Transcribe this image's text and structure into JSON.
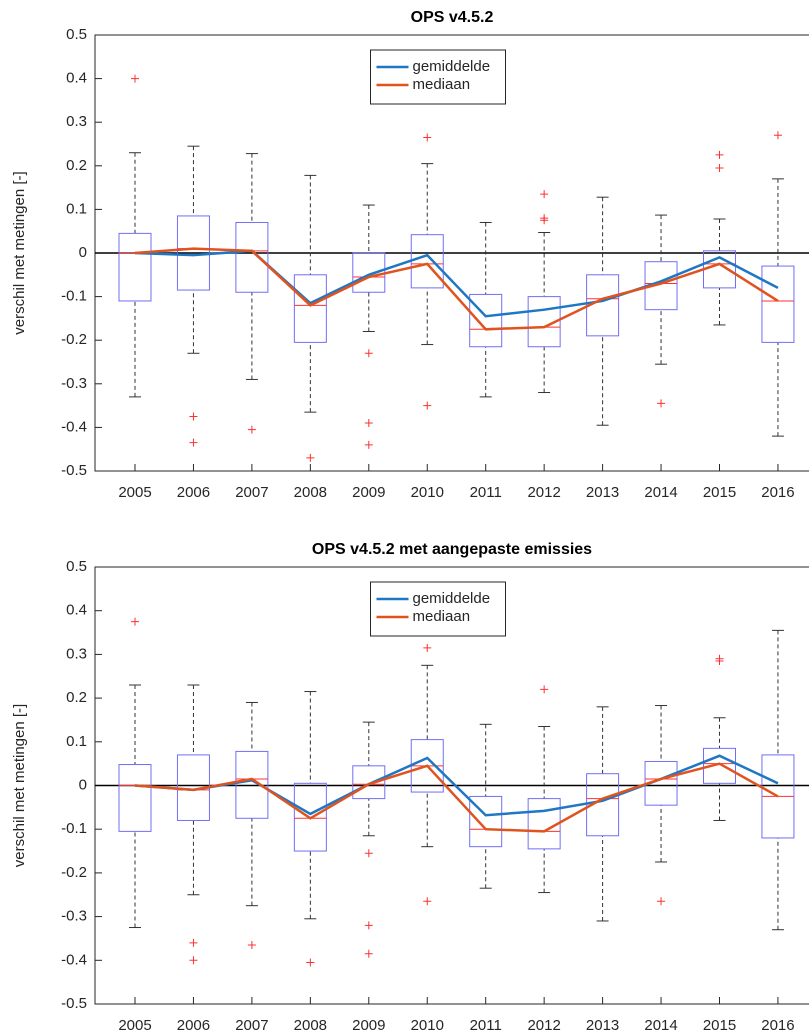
{
  "chart_data": [
    {
      "type": "box",
      "title": "OPS v4.5.2",
      "ylabel": "verschil met metingen [-]",
      "categories": [
        "2005",
        "2006",
        "2007",
        "2008",
        "2009",
        "2010",
        "2011",
        "2012",
        "2013",
        "2014",
        "2015",
        "2016"
      ],
      "ylim": [
        -0.5,
        0.5
      ],
      "yticks": [
        -0.5,
        -0.4,
        -0.3,
        -0.2,
        -0.1,
        0,
        0.1,
        0.2,
        0.3,
        0.4,
        0.5
      ],
      "hline": 0,
      "box_color": "#6f6ff5",
      "outlier_color": "#ff3030",
      "legend": "north",
      "boxes": [
        {
          "low": -0.33,
          "q1": -0.11,
          "median": 0,
          "q3": 0.045,
          "high": 0.23,
          "outliers": [
            0.4
          ]
        },
        {
          "low": -0.23,
          "q1": -0.085,
          "median": 0.01,
          "q3": 0.085,
          "high": 0.245,
          "outliers": [
            -0.375,
            -0.435
          ]
        },
        {
          "low": -0.29,
          "q1": -0.09,
          "median": 0.005,
          "q3": 0.07,
          "high": 0.228,
          "outliers": [
            -0.405
          ]
        },
        {
          "low": -0.365,
          "q1": -0.205,
          "median": -0.12,
          "q3": -0.05,
          "high": 0.178,
          "outliers": [
            -0.47
          ]
        },
        {
          "low": -0.18,
          "q1": -0.09,
          "median": -0.055,
          "q3": 0,
          "high": 0.11,
          "outliers": [
            -0.23,
            -0.39,
            -0.44
          ]
        },
        {
          "low": -0.21,
          "q1": -0.08,
          "median": -0.025,
          "q3": 0.042,
          "high": 0.205,
          "outliers": [
            0.265,
            -0.35
          ]
        },
        {
          "low": -0.33,
          "q1": -0.215,
          "median": -0.175,
          "q3": -0.095,
          "high": 0.07,
          "outliers": []
        },
        {
          "low": -0.32,
          "q1": -0.215,
          "median": -0.17,
          "q3": -0.1,
          "high": 0.047,
          "outliers": [
            0.135,
            0.075,
            0.08
          ]
        },
        {
          "low": -0.395,
          "q1": -0.19,
          "median": -0.105,
          "q3": -0.05,
          "high": 0.128,
          "outliers": []
        },
        {
          "low": -0.255,
          "q1": -0.13,
          "median": -0.07,
          "q3": -0.02,
          "high": 0.087,
          "outliers": [
            -0.345
          ]
        },
        {
          "low": -0.165,
          "q1": -0.08,
          "median": -0.025,
          "q3": 0.005,
          "high": 0.078,
          "outliers": [
            0.225,
            0.195
          ]
        },
        {
          "low": -0.42,
          "q1": -0.205,
          "median": -0.11,
          "q3": -0.03,
          "high": 0.17,
          "outliers": [
            0.27
          ]
        }
      ],
      "series": [
        {
          "name": "gemiddelde",
          "color": "#1f77c4",
          "values": [
            0,
            -0.005,
            0.005,
            -0.115,
            -0.05,
            -0.005,
            -0.145,
            -0.13,
            -0.11,
            -0.065,
            -0.01,
            -0.08
          ]
        },
        {
          "name": "mediaan",
          "color": "#e0531f",
          "values": [
            0,
            0.01,
            0.005,
            -0.12,
            -0.055,
            -0.025,
            -0.175,
            -0.17,
            -0.105,
            -0.07,
            -0.025,
            -0.11
          ]
        }
      ]
    },
    {
      "type": "box",
      "title": "OPS v4.5.2 met aangepaste emissies",
      "ylabel": "verschil met metingen [-]",
      "categories": [
        "2005",
        "2006",
        "2007",
        "2008",
        "2009",
        "2010",
        "2011",
        "2012",
        "2013",
        "2014",
        "2015",
        "2016"
      ],
      "ylim": [
        -0.5,
        0.5
      ],
      "yticks": [
        -0.5,
        -0.4,
        -0.3,
        -0.2,
        -0.1,
        0,
        0.1,
        0.2,
        0.3,
        0.4,
        0.5
      ],
      "hline": 0,
      "box_color": "#6f6ff5",
      "outlier_color": "#ff3030",
      "legend": "north",
      "boxes": [
        {
          "low": -0.325,
          "q1": -0.105,
          "median": 0,
          "q3": 0.048,
          "high": 0.23,
          "outliers": [
            0.375
          ]
        },
        {
          "low": -0.25,
          "q1": -0.08,
          "median": -0.01,
          "q3": 0.07,
          "high": 0.23,
          "outliers": [
            -0.36,
            -0.4
          ]
        },
        {
          "low": -0.275,
          "q1": -0.075,
          "median": 0.015,
          "q3": 0.078,
          "high": 0.19,
          "outliers": [
            -0.365
          ]
        },
        {
          "low": -0.305,
          "q1": -0.15,
          "median": -0.075,
          "q3": 0.005,
          "high": 0.215,
          "outliers": [
            -0.405
          ]
        },
        {
          "low": -0.115,
          "q1": -0.03,
          "median": 0.003,
          "q3": 0.045,
          "high": 0.145,
          "outliers": [
            -0.155,
            -0.32,
            -0.385
          ]
        },
        {
          "low": -0.14,
          "q1": -0.015,
          "median": 0.045,
          "q3": 0.105,
          "high": 0.275,
          "outliers": [
            0.315,
            -0.265
          ]
        },
        {
          "low": -0.235,
          "q1": -0.14,
          "median": -0.1,
          "q3": -0.025,
          "high": 0.14,
          "outliers": []
        },
        {
          "low": -0.245,
          "q1": -0.145,
          "median": -0.105,
          "q3": -0.03,
          "high": 0.135,
          "outliers": [
            0.22
          ]
        },
        {
          "low": -0.31,
          "q1": -0.115,
          "median": -0.03,
          "q3": 0.027,
          "high": 0.18,
          "outliers": []
        },
        {
          "low": -0.175,
          "q1": -0.045,
          "median": 0.015,
          "q3": 0.055,
          "high": 0.183,
          "outliers": [
            -0.265
          ]
        },
        {
          "low": -0.08,
          "q1": 0.005,
          "median": 0.05,
          "q3": 0.085,
          "high": 0.155,
          "outliers": [
            0.29,
            0.285
          ]
        },
        {
          "low": -0.33,
          "q1": -0.12,
          "median": -0.025,
          "q3": 0.07,
          "high": 0.355,
          "outliers": []
        }
      ],
      "series": [
        {
          "name": "gemiddelde",
          "color": "#1f77c4",
          "values": [
            0,
            -0.01,
            0.012,
            -0.065,
            0.003,
            0.063,
            -0.068,
            -0.058,
            -0.035,
            0.015,
            0.068,
            0.005
          ]
        },
        {
          "name": "mediaan",
          "color": "#e0531f",
          "values": [
            0,
            -0.01,
            0.015,
            -0.075,
            0.003,
            0.045,
            -0.1,
            -0.105,
            -0.03,
            0.015,
            0.05,
            -0.025
          ]
        }
      ]
    }
  ]
}
